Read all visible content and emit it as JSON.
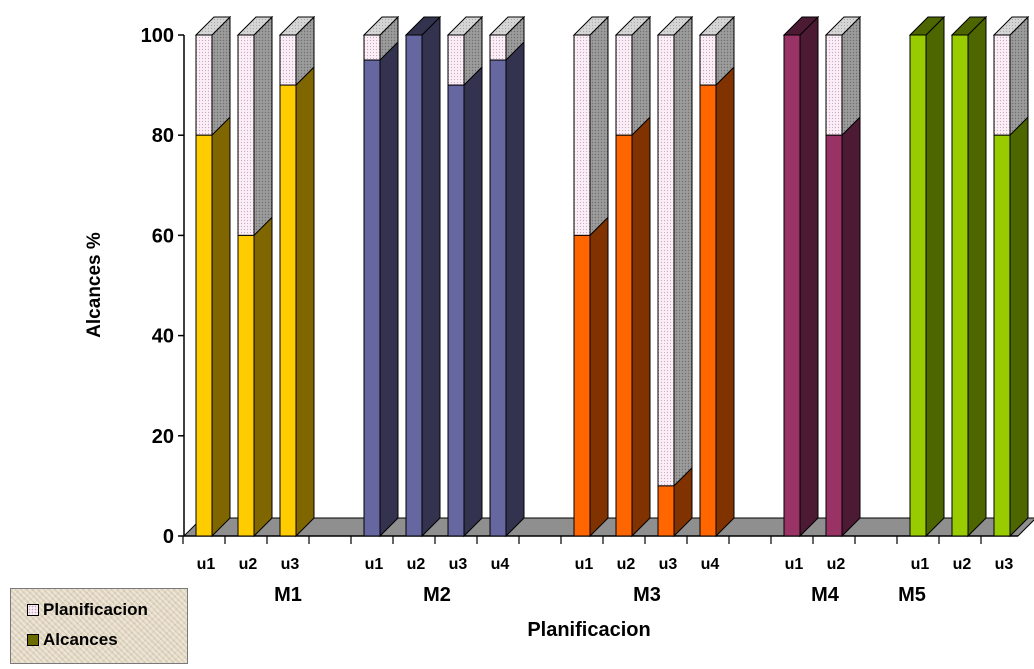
{
  "chart_data": {
    "type": "bar",
    "stacked": true,
    "three_d": true,
    "xlabel": "Planificacion",
    "ylabel": "Alcances %",
    "ylim": [
      0,
      100
    ],
    "yticks": [
      0,
      20,
      40,
      60,
      80,
      100
    ],
    "legend": {
      "position": "bottom-left"
    },
    "series": [
      {
        "name": "Planificacion",
        "key": "planificacion",
        "color": "#fbeef7",
        "side_color": "#9c9c9c"
      },
      {
        "name": "Alcances",
        "key": "alcances",
        "color": "#6b6b00"
      }
    ],
    "groups": [
      {
        "label": "M1",
        "color": "#ffcc00",
        "side_color": "#7f6600",
        "bars": [
          {
            "label": "u1",
            "alcances": 80
          },
          {
            "label": "u2",
            "alcances": 60
          },
          {
            "label": "u3",
            "alcances": 90
          }
        ]
      },
      {
        "label": "M2",
        "color": "#6666a0",
        "side_color": "#333350",
        "bars": [
          {
            "label": "u1",
            "alcances": 95
          },
          {
            "label": "u2",
            "alcances": 100
          },
          {
            "label": "u3",
            "alcances": 90
          },
          {
            "label": "u4",
            "alcances": 95
          }
        ]
      },
      {
        "label": "M3",
        "color": "#ff6600",
        "side_color": "#803300",
        "bars": [
          {
            "label": "u1",
            "alcances": 60
          },
          {
            "label": "u2",
            "alcances": 80
          },
          {
            "label": "u3",
            "alcances": 10
          },
          {
            "label": "u4",
            "alcances": 90
          }
        ]
      },
      {
        "label": "M4",
        "color": "#993366",
        "side_color": "#4d1a33",
        "bars": [
          {
            "label": "u1",
            "alcances": 100
          },
          {
            "label": "u2",
            "alcances": 80
          }
        ]
      },
      {
        "label": "M5",
        "color": "#99cc00",
        "side_color": "#4d6600",
        "bars": [
          {
            "label": "u1",
            "alcances": 100
          },
          {
            "label": "u2",
            "alcances": 100
          },
          {
            "label": "u3",
            "alcances": 80
          }
        ]
      }
    ]
  }
}
